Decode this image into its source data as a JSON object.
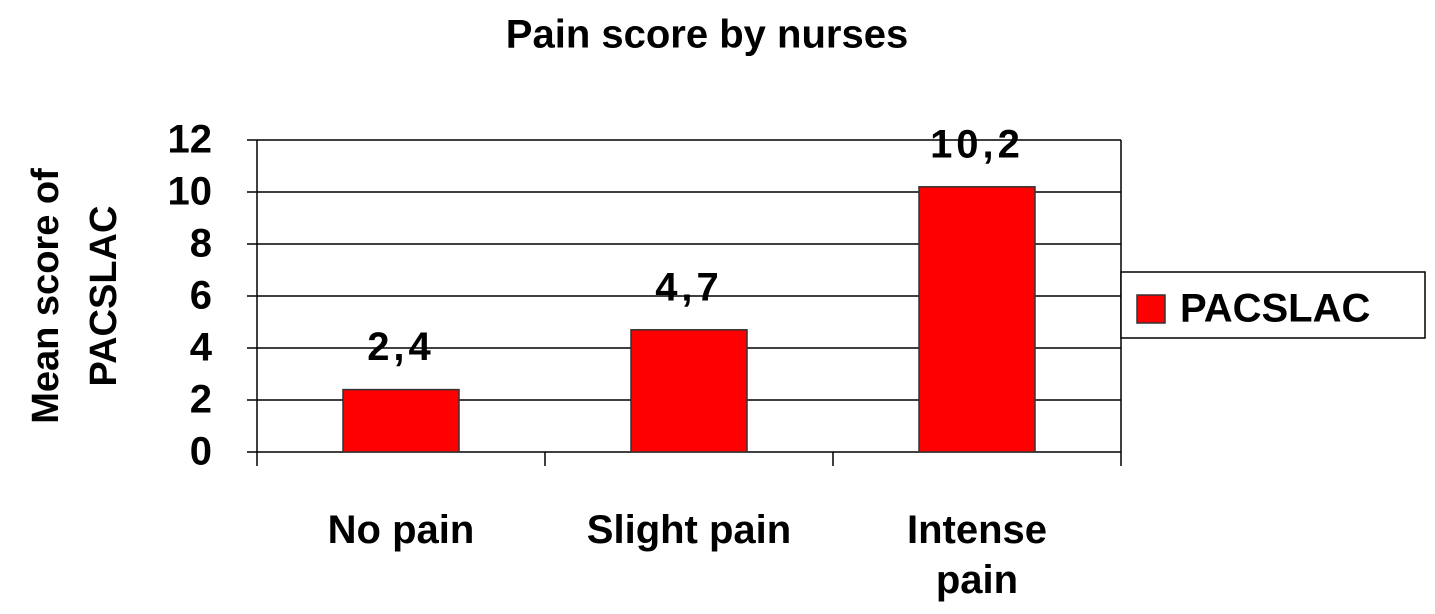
{
  "chart_data": {
    "type": "bar",
    "title": "Pain score by nurses",
    "y_label": "Mean score of PACSLAC",
    "categories": [
      "No pain",
      "Slight pain",
      "Intense pain"
    ],
    "series": [
      {
        "name": "PACSLAC",
        "color": "#ff0000",
        "values": [
          2.4,
          4.7,
          10.2
        ],
        "value_labels": [
          "2,4",
          "4,7",
          "10,2"
        ]
      }
    ],
    "ylim": [
      0,
      12
    ],
    "yticks": [
      0,
      2,
      4,
      6,
      8,
      10,
      12
    ],
    "grid": true,
    "legend": "right"
  }
}
